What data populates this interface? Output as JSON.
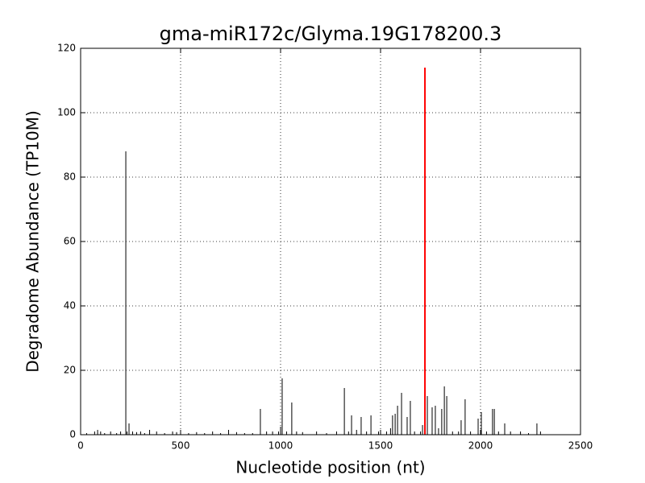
{
  "chart_data": {
    "type": "stem",
    "title": "gma-miR172c/Glyma.19G178200.3",
    "xlabel": "Nucleotide position (nt)",
    "ylabel": "Degradome Abundance (TP10M)",
    "xlim": [
      0,
      2500
    ],
    "xticks": [
      0,
      500,
      1000,
      1500,
      2000,
      2500
    ],
    "ylim": [
      0,
      120
    ],
    "yticks": [
      0,
      20,
      40,
      60,
      80,
      100,
      120
    ],
    "grid": true,
    "series": [
      {
        "color": "#000000",
        "line_width": 1,
        "x": [
          30,
          70,
          85,
          100,
          120,
          150,
          180,
          200,
          226,
          232,
          242,
          260,
          280,
          300,
          320,
          345,
          380,
          420,
          460,
          480,
          500,
          540,
          580,
          620,
          660,
          700,
          740,
          780,
          820,
          860,
          899,
          930,
          960,
          990,
          1000,
          1008,
          1030,
          1056,
          1080,
          1110,
          1180,
          1230,
          1280,
          1319,
          1340,
          1355,
          1380,
          1403,
          1430,
          1452,
          1490,
          1530,
          1550,
          1560,
          1573,
          1585,
          1605,
          1633,
          1649,
          1670,
          1700,
          1710,
          1734,
          1758,
          1774,
          1790,
          1806,
          1819,
          1831,
          1860,
          1890,
          1903,
          1923,
          1950,
          1988,
          2004,
          2030,
          2060,
          2069,
          2090,
          2121,
          2150,
          2200,
          2240,
          2282,
          2300
        ],
        "values": [
          0.5,
          1,
          1.5,
          1,
          0.5,
          1,
          0.5,
          1,
          88,
          1,
          3.5,
          1,
          0.8,
          1,
          0.5,
          1.5,
          1,
          0.5,
          1,
          0.8,
          1,
          0.5,
          0.8,
          0.5,
          1,
          0.5,
          1.5,
          0.8,
          0.5,
          0.5,
          8,
          1,
          1,
          1,
          2.5,
          17.5,
          1,
          10,
          1,
          0.8,
          1,
          0.5,
          1,
          14.5,
          1,
          6,
          1.5,
          5.5,
          1,
          6,
          1,
          1,
          2,
          6,
          6.5,
          9,
          13,
          5.5,
          10.5,
          1,
          1,
          3,
          12,
          8.5,
          9,
          2,
          8,
          15,
          12,
          1,
          1,
          4.5,
          11,
          1,
          5,
          7,
          1,
          8,
          8,
          1,
          3.5,
          1,
          1,
          0.5,
          3.5,
          1
        ]
      },
      {
        "color": "#ff0000",
        "line_width": 2,
        "x": [
          1722
        ],
        "values": [
          114
        ]
      }
    ]
  }
}
